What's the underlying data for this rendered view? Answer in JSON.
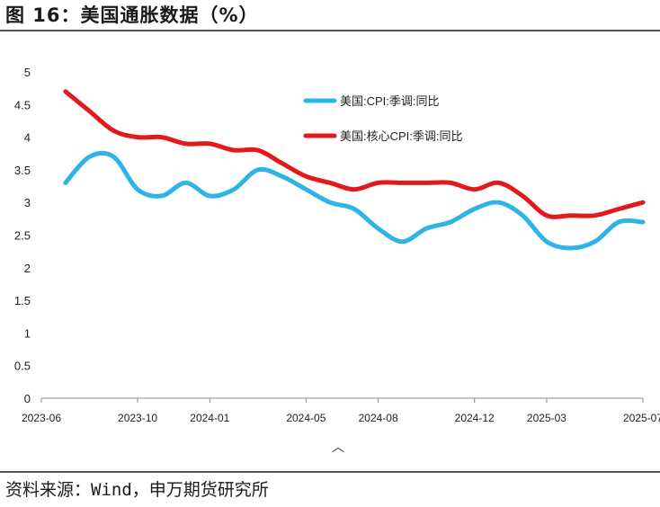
{
  "figure": {
    "title": "图 16：美国通胀数据（%）",
    "source": "资料来源：Wind，申万期货研究所"
  },
  "chart_data": {
    "type": "line",
    "title": "",
    "xlabel": "",
    "ylabel": "",
    "ylim": [
      0,
      5
    ],
    "yticks": [
      "0",
      "0.5",
      "1",
      "1.5",
      "2",
      "2.5",
      "3",
      "3.5",
      "4",
      "4.5",
      "5"
    ],
    "xticks": [
      "2023-06",
      "2023-10",
      "2024-01",
      "2024-05",
      "2024-08",
      "2024-12",
      "2025-03",
      "2025-07"
    ],
    "grid": false,
    "legend_position": "top-center",
    "x": [
      "2023-07",
      "2023-08",
      "2023-09",
      "2023-10",
      "2023-11",
      "2023-12",
      "2024-01",
      "2024-02",
      "2024-03",
      "2024-04",
      "2024-05",
      "2024-06",
      "2024-07",
      "2024-08",
      "2024-09",
      "2024-10",
      "2024-11",
      "2024-12",
      "2025-01",
      "2025-02",
      "2025-03",
      "2025-04",
      "2025-05",
      "2025-06",
      "2025-07"
    ],
    "series": [
      {
        "name": "美国:CPI:季调:同比",
        "color": "#2fb4e6",
        "values": [
          3.3,
          3.7,
          3.7,
          3.2,
          3.1,
          3.3,
          3.1,
          3.2,
          3.5,
          3.4,
          3.2,
          3.0,
          2.9,
          2.6,
          2.4,
          2.6,
          2.7,
          2.9,
          3.0,
          2.8,
          2.4,
          2.3,
          2.4,
          2.7,
          2.7
        ]
      },
      {
        "name": "美国:核心CPI:季调:同比",
        "color": "#e31a1c",
        "values": [
          4.7,
          4.4,
          4.1,
          4.0,
          4.0,
          3.9,
          3.9,
          3.8,
          3.8,
          3.6,
          3.4,
          3.3,
          3.2,
          3.3,
          3.3,
          3.3,
          3.3,
          3.2,
          3.3,
          3.1,
          2.8,
          2.8,
          2.8,
          2.9,
          3.0
        ]
      }
    ]
  }
}
